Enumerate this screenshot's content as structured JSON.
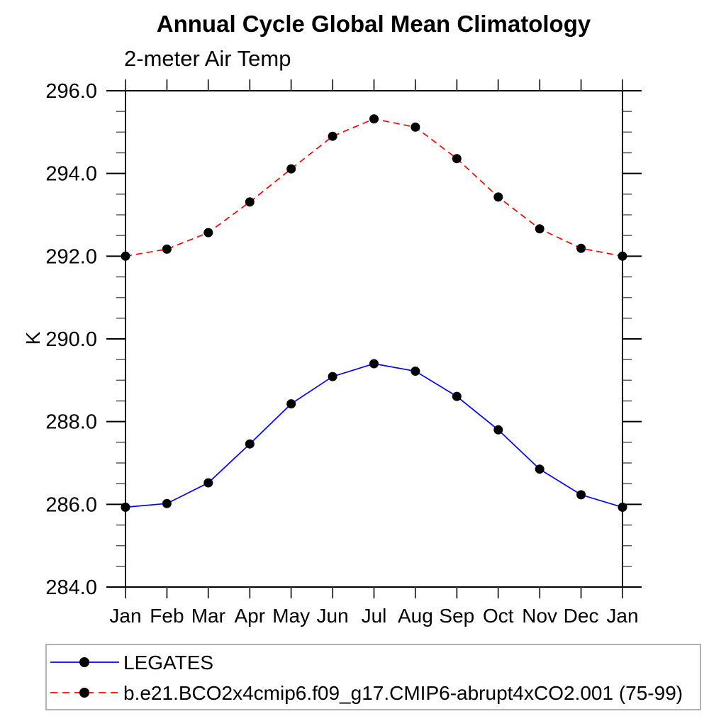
{
  "page": {
    "background": "#ffffff"
  },
  "chart_data": {
    "type": "line",
    "title": "Annual Cycle Global Mean Climatology",
    "subtitle": "2-meter Air Temp",
    "ylabel": "K",
    "categories": [
      "Jan",
      "Feb",
      "Mar",
      "Apr",
      "May",
      "Jun",
      "Jul",
      "Aug",
      "Sep",
      "Oct",
      "Nov",
      "Dec",
      "Jan"
    ],
    "ylim": [
      284.0,
      296.0
    ],
    "y_major_tick_step": 2.0,
    "y_minor_tick_step": 0.5,
    "y_tick_labels": [
      "284.0",
      "286.0",
      "288.0",
      "290.0",
      "292.0",
      "294.0",
      "296.0"
    ],
    "grid": false,
    "legend_position": "bottom-left",
    "axis_color": "#000000",
    "marker_shape": "filled-circle",
    "series": [
      {
        "name": "LEGATES",
        "color": "#0000ff",
        "line_style": "solid",
        "marker_color": "#000000",
        "values": [
          285.93,
          286.02,
          286.52,
          287.46,
          288.43,
          289.09,
          289.4,
          289.22,
          288.61,
          287.8,
          286.85,
          286.23,
          285.93
        ]
      },
      {
        "name": "b.e21.BCO2x4cmip6.f09_g17.CMIP6-abrupt4xCO2.001 (75-99)",
        "color": "#ff0000",
        "line_style": "dashed",
        "marker_color": "#000000",
        "values": [
          292.0,
          292.17,
          292.57,
          293.31,
          294.11,
          294.9,
          295.32,
          295.12,
          294.36,
          293.43,
          292.66,
          292.19,
          292.0
        ]
      }
    ]
  }
}
